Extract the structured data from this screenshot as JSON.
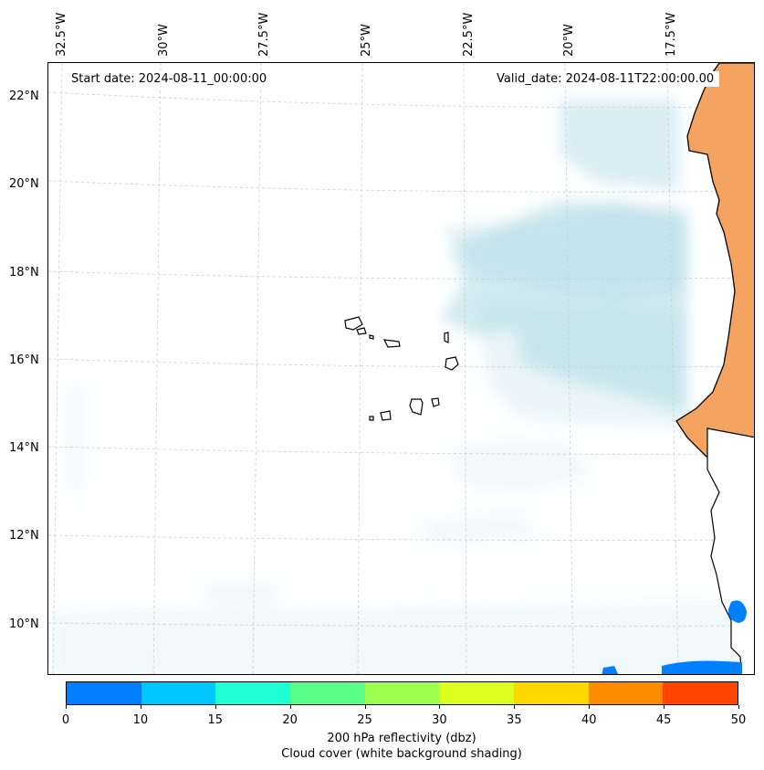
{
  "map": {
    "start_date": "Start date: 2024-08-11_00:00:00",
    "valid_date": "Valid_date: 2024-08-11T22:00:00.00",
    "longitude_labels": [
      "32.5°W",
      "30°W",
      "27.5°W",
      "25°W",
      "22.5°W",
      "20°W",
      "17.5°W"
    ],
    "latitude_labels": [
      "22°N",
      "20°N",
      "18°N",
      "16°N",
      "14°N",
      "12°N",
      "10°N"
    ],
    "land_color": "#f4a460",
    "cloud_color": "#add8e6",
    "reflectivity_color": "#0080ff"
  },
  "colorbar": {
    "ticks": [
      "0",
      "10",
      "15",
      "20",
      "25",
      "30",
      "35",
      "40",
      "45",
      "50"
    ],
    "colors": [
      "#0080ff",
      "#00c8ff",
      "#1effd8",
      "#5aff8a",
      "#9eff50",
      "#dcff1e",
      "#ffd700",
      "#ff8c00",
      "#ff4500"
    ],
    "label_line1": "200 hPa reflectivity (dbz)",
    "label_line2": "Cloud cover (white background shading)"
  }
}
